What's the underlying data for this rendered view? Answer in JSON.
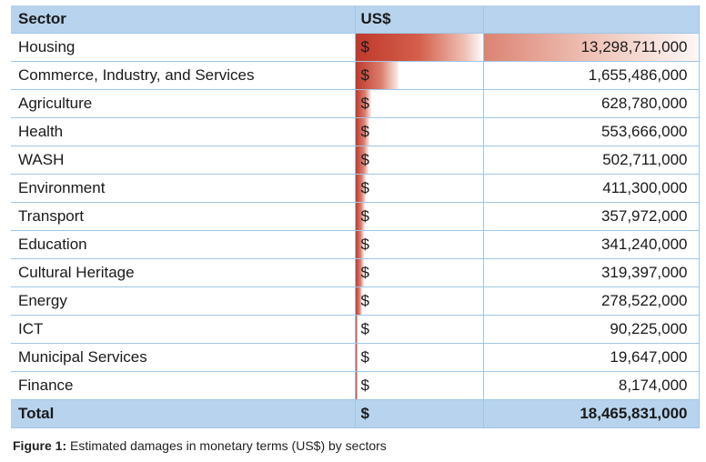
{
  "table": {
    "headers": {
      "sector": "Sector",
      "currency": "US$",
      "value": ""
    },
    "rows": [
      {
        "sector": "Housing",
        "currency": "$",
        "value": "13,298,711,000",
        "amount": 13298711000
      },
      {
        "sector": "Commerce, Industry, and Services",
        "currency": "$",
        "value": "1,655,486,000",
        "amount": 1655486000
      },
      {
        "sector": "Agriculture",
        "currency": "$",
        "value": "628,780,000",
        "amount": 628780000
      },
      {
        "sector": "Health",
        "currency": "$",
        "value": "553,666,000",
        "amount": 553666000
      },
      {
        "sector": "WASH",
        "currency": "$",
        "value": "502,711,000",
        "amount": 502711000
      },
      {
        "sector": "Environment",
        "currency": "$",
        "value": "411,300,000",
        "amount": 411300000
      },
      {
        "sector": "Transport",
        "currency": "$",
        "value": "357,972,000",
        "amount": 357972000
      },
      {
        "sector": "Education",
        "currency": "$",
        "value": "341,240,000",
        "amount": 341240000
      },
      {
        "sector": "Cultural Heritage",
        "currency": "$",
        "value": "319,397,000",
        "amount": 319397000
      },
      {
        "sector": "Energy",
        "currency": "$",
        "value": "278,522,000",
        "amount": 278522000
      },
      {
        "sector": "ICT",
        "currency": "$",
        "value": "90,225,000",
        "amount": 90225000
      },
      {
        "sector": "Municipal Services",
        "currency": "$",
        "value": "19,647,000",
        "amount": 19647000
      },
      {
        "sector": "Finance",
        "currency": "$",
        "value": "8,174,000",
        "amount": 8174000
      }
    ],
    "total": {
      "sector": "Total",
      "currency": "$",
      "value": "18,465,831,000"
    }
  },
  "caption": {
    "label": "Figure 1:",
    "text": " Estimated damages in monetary terms (US$) by sectors"
  },
  "colors": {
    "header_bg": "#b8d3ed",
    "grid": "#9fc6e6",
    "bar": "#c0392b"
  }
}
